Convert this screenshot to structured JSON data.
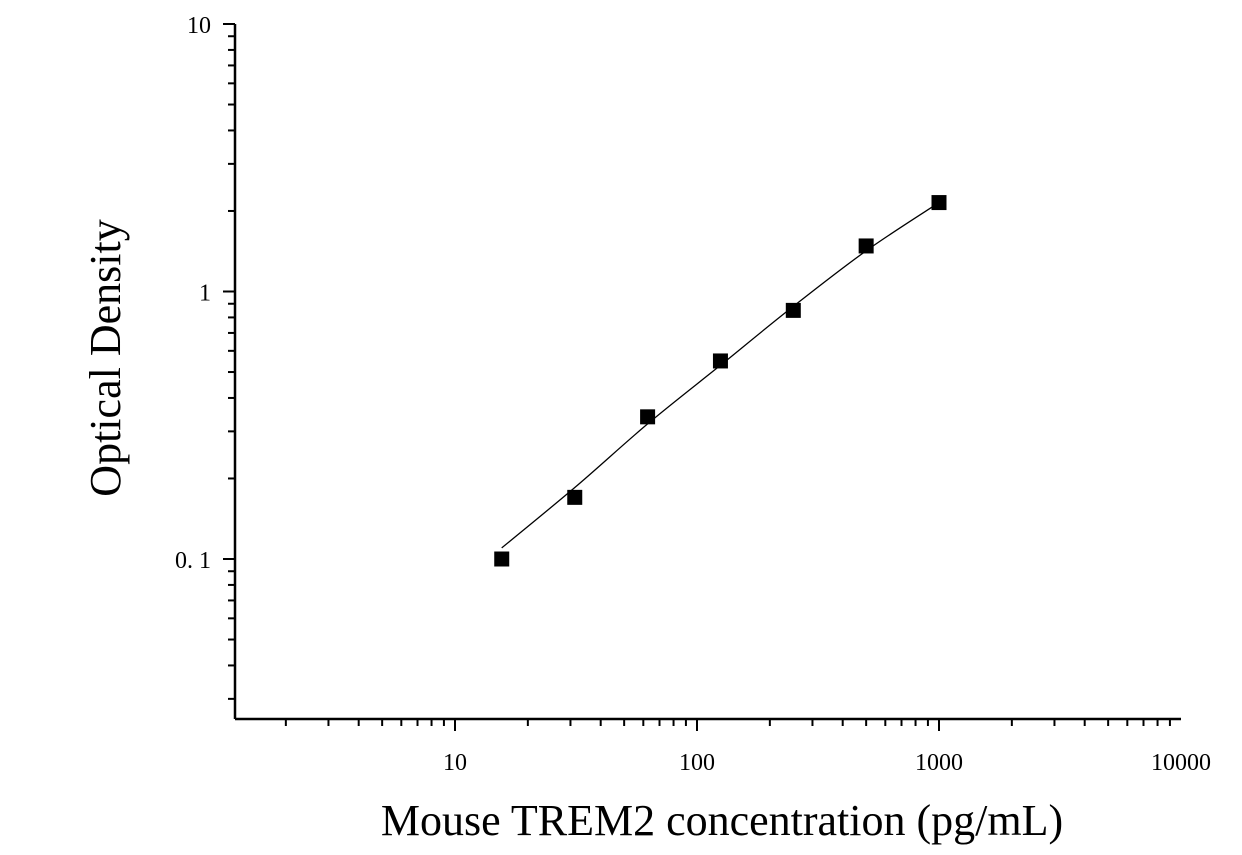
{
  "chart_data": {
    "type": "scatter",
    "title": "",
    "xlabel": "Mouse TREM2 concentration (pg/mL)",
    "ylabel": "Optical Density",
    "x_scale": "log",
    "y_scale": "log",
    "xlim": [
      1.1,
      10000
    ],
    "ylim": [
      0.025,
      10
    ],
    "grid": false,
    "legend": "none",
    "x_ticks": [
      {
        "value": 10,
        "label": "10"
      },
      {
        "value": 100,
        "label": "100"
      },
      {
        "value": 1000,
        "label": "1000"
      },
      {
        "value": 10000,
        "label": "10000"
      }
    ],
    "y_ticks": [
      {
        "value": 0.1,
        "label": "0. 1"
      },
      {
        "value": 1,
        "label": "1"
      },
      {
        "value": 10,
        "label": "10"
      }
    ],
    "series": [
      {
        "marker": "square",
        "color": "#000000",
        "points": [
          {
            "x": 15.6,
            "y": 0.1
          },
          {
            "x": 31.25,
            "y": 0.17
          },
          {
            "x": 62.5,
            "y": 0.34
          },
          {
            "x": 125,
            "y": 0.55
          },
          {
            "x": 250,
            "y": 0.85
          },
          {
            "x": 500,
            "y": 1.48
          },
          {
            "x": 1000,
            "y": 2.15
          }
        ]
      }
    ],
    "fit_curve": {
      "type": "smooth",
      "color": "#000000",
      "points": [
        {
          "x": 15.6,
          "y": 0.11
        },
        {
          "x": 31.25,
          "y": 0.185
        },
        {
          "x": 62.5,
          "y": 0.32
        },
        {
          "x": 125,
          "y": 0.53
        },
        {
          "x": 250,
          "y": 0.88
        },
        {
          "x": 500,
          "y": 1.42
        },
        {
          "x": 1000,
          "y": 2.15
        }
      ]
    }
  }
}
